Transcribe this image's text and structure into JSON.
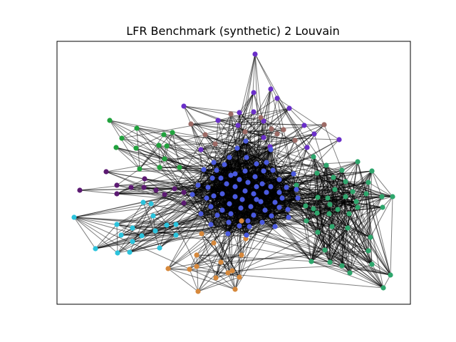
{
  "title": "LFR Benchmark (synthetic) 2 Louvain",
  "communities": [
    {
      "name": "purple",
      "color": "#6a2fc9"
    },
    {
      "name": "blue",
      "color": "#4a5ae0"
    },
    {
      "name": "green",
      "color": "#2ea66c"
    },
    {
      "name": "brown",
      "color": "#9c6a65"
    },
    {
      "name": "lime",
      "color": "#21a23d"
    },
    {
      "name": "violet",
      "color": "#5c1a72"
    },
    {
      "name": "cyan",
      "color": "#2bc3dc"
    },
    {
      "name": "orange",
      "color": "#d6883b"
    }
  ],
  "edge_color": "#000000"
}
